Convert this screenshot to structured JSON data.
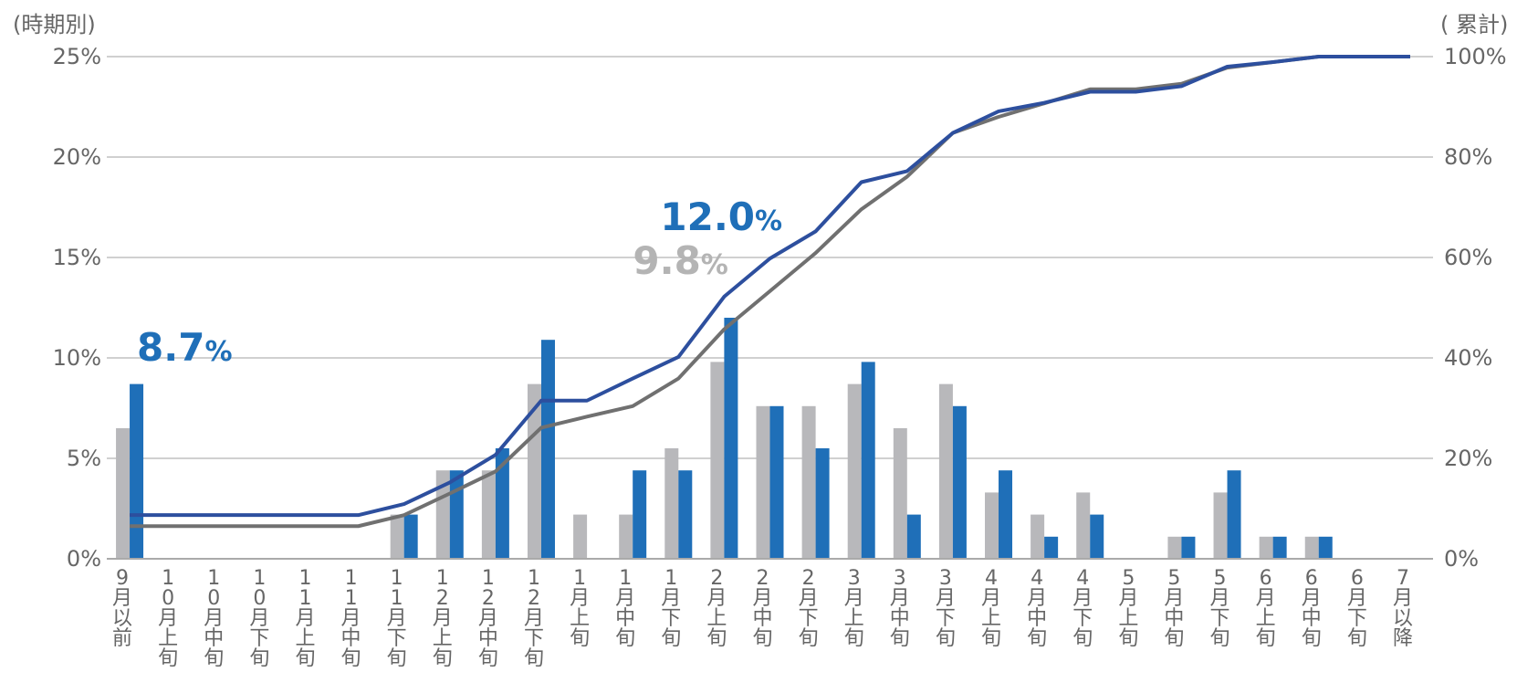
{
  "chart_data": {
    "type": "bar",
    "left_axis_label": "(時期別)",
    "right_axis_label": "( 累計)",
    "categories": [
      "9月以前",
      "10月上旬",
      "10月中旬",
      "10月下旬",
      "11月上旬",
      "11月中旬",
      "11月下旬",
      "12月上旬",
      "12月中旬",
      "12月下旬",
      "1月上旬",
      "1月中旬",
      "1月下旬",
      "2月上旬",
      "2月中旬",
      "2月下旬",
      "3月上旬",
      "3月中旬",
      "3月下旬",
      "4月上旬",
      "4月中旬",
      "4月下旬",
      "5月上旬",
      "5月中旬",
      "5月下旬",
      "6月上旬",
      "6月中旬",
      "6月下旬",
      "7月以降"
    ],
    "y_left": {
      "min": 0,
      "max": 25,
      "step": 5,
      "ticks": [
        "0%",
        "5%",
        "10%",
        "15%",
        "20%",
        "25%"
      ]
    },
    "y_right": {
      "min": 0,
      "max": 100,
      "step": 20,
      "ticks": [
        "0%",
        "20%",
        "40%",
        "60%",
        "80%",
        "100%"
      ]
    },
    "grid": true,
    "colors": {
      "gray_bar": "#b8b8bb",
      "blue_bar": "#1f6fb8",
      "gray_line": "#707070",
      "blue_line": "#2d4f9e",
      "grid": "#d0d0d0",
      "axis": "#aaaaaa",
      "gray_callout": "#b4b4b4",
      "blue_callout": "#1f6fb8"
    },
    "bar_series": [
      {
        "values": [
          6.5,
          0,
          0,
          0,
          0,
          0,
          2.2,
          4.4,
          4.4,
          8.7,
          2.2,
          2.2,
          5.5,
          9.8,
          7.6,
          7.6,
          8.7,
          6.5,
          8.7,
          3.3,
          2.2,
          3.3,
          0,
          1.1,
          3.3,
          1.1,
          1.1,
          0,
          0
        ]
      },
      {
        "values": [
          8.7,
          0,
          0,
          0,
          0,
          0,
          2.2,
          4.4,
          5.5,
          10.9,
          0,
          4.4,
          4.4,
          12.0,
          7.6,
          5.5,
          9.8,
          2.2,
          7.6,
          4.4,
          1.1,
          2.2,
          0,
          1.1,
          4.4,
          1.1,
          1.1,
          0,
          0
        ]
      }
    ],
    "line_series": [
      {
        "axis": "right",
        "values": [
          6.5,
          6.5,
          6.5,
          6.5,
          6.5,
          6.5,
          8.7,
          13.0,
          17.4,
          26.1,
          28.3,
          30.4,
          35.9,
          45.7,
          53.3,
          60.9,
          69.6,
          76.1,
          84.8,
          88.0,
          90.7,
          93.5,
          93.5,
          94.6,
          97.8,
          98.9,
          100.0,
          100.0,
          100.0
        ]
      },
      {
        "axis": "right",
        "values": [
          8.7,
          8.7,
          8.7,
          8.7,
          8.7,
          8.7,
          10.9,
          15.2,
          20.7,
          31.5,
          31.5,
          35.9,
          40.2,
          52.2,
          59.8,
          65.2,
          75.0,
          77.2,
          84.8,
          89.1,
          90.8,
          93.0,
          93.0,
          94.1,
          98.0,
          98.9,
          100.0,
          100.0,
          100.0
        ]
      }
    ],
    "annotations": [
      {
        "category_index": 0,
        "value_big": "8.7",
        "unit": "%",
        "color": "blue_callout"
      },
      {
        "category_index": 13,
        "value_big": "12.0",
        "unit": "%",
        "color": "blue_callout"
      },
      {
        "category_index": 13,
        "value_big": "9.8",
        "unit": "%",
        "color": "gray_callout"
      }
    ]
  }
}
